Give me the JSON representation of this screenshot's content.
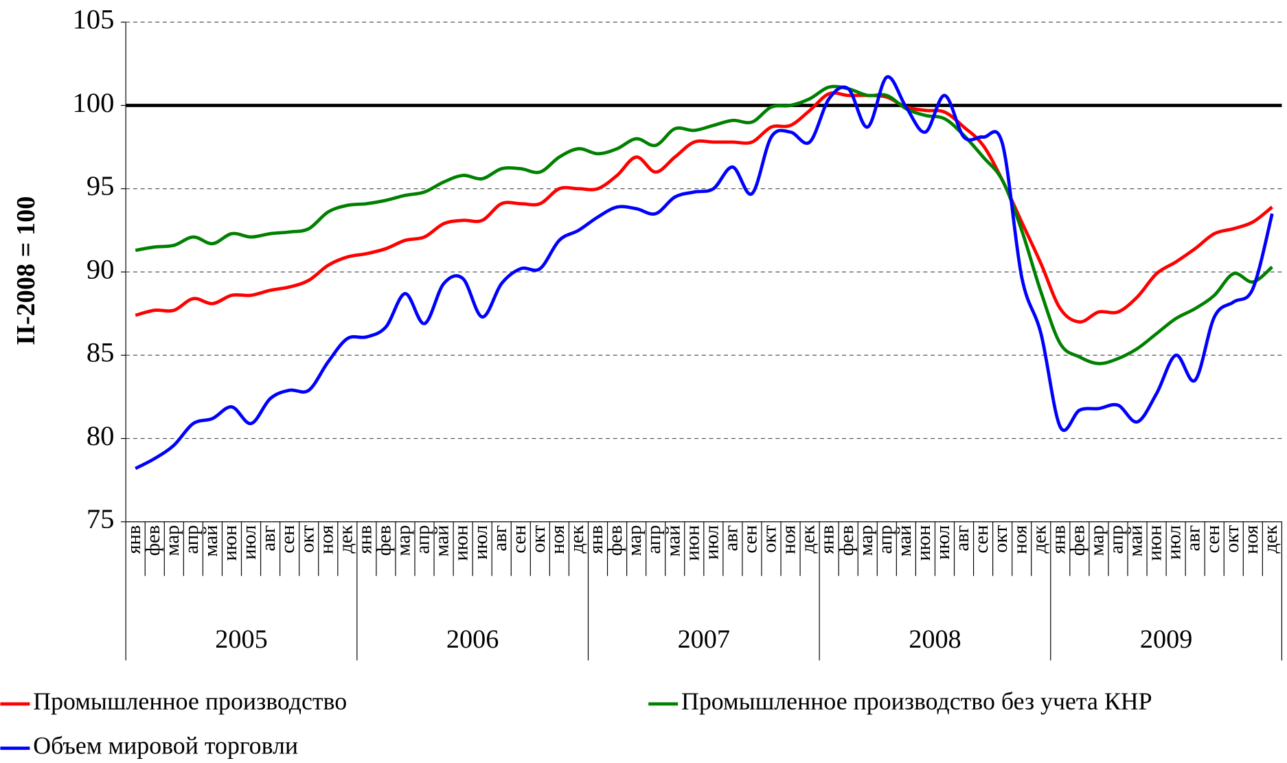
{
  "chart_data": {
    "type": "line",
    "y_label": "II-2008 = 100",
    "categories": [
      "янв",
      "фев",
      "мар",
      "апр",
      "май",
      "июн",
      "июл",
      "авг",
      "сен",
      "окт",
      "ноя",
      "дек",
      "янв",
      "фев",
      "мар",
      "апр",
      "май",
      "июн",
      "июл",
      "авг",
      "сен",
      "окт",
      "ноя",
      "дек",
      "янв",
      "фев",
      "мар",
      "апр",
      "май",
      "июн",
      "июл",
      "авг",
      "сен",
      "окт",
      "ноя",
      "дек",
      "янв",
      "фев",
      "мар",
      "апр",
      "май",
      "июн",
      "июл",
      "авг",
      "сен",
      "окт",
      "ноя",
      "дек",
      "янв",
      "фев",
      "мар",
      "апр",
      "май",
      "июн",
      "июл",
      "авг",
      "сен",
      "окт",
      "ноя",
      "дек"
    ],
    "groups": [
      "2005",
      "2006",
      "2007",
      "2008",
      "2009"
    ],
    "series": [
      {
        "name": "Промышленное производство",
        "color": "#ff0000",
        "values": [
          87.4,
          87.7,
          87.7,
          88.4,
          88.1,
          88.6,
          88.6,
          88.9,
          89.1,
          89.5,
          90.4,
          90.9,
          91.1,
          91.4,
          91.9,
          92.1,
          92.9,
          93.1,
          93.1,
          94.1,
          94.1,
          94.1,
          95.0,
          95.0,
          95.0,
          95.8,
          96.9,
          96.0,
          96.9,
          97.8,
          97.8,
          97.8,
          97.8,
          98.7,
          98.8,
          99.7,
          100.7,
          100.6,
          100.6,
          100.5,
          99.9,
          99.7,
          99.6,
          98.7,
          97.6,
          95.5,
          93.0,
          90.5,
          87.8,
          87.0,
          87.6,
          87.6,
          88.5,
          89.9,
          90.6,
          91.4,
          92.3,
          92.6,
          93.0,
          93.9
        ]
      },
      {
        "name": "Промышленное производство без учета КНР",
        "color": "#008000",
        "values": [
          91.3,
          91.5,
          91.6,
          92.1,
          91.7,
          92.3,
          92.1,
          92.3,
          92.4,
          92.6,
          93.6,
          94.0,
          94.1,
          94.3,
          94.6,
          94.8,
          95.4,
          95.8,
          95.6,
          96.2,
          96.2,
          96.0,
          96.9,
          97.4,
          97.1,
          97.4,
          98.0,
          97.6,
          98.6,
          98.5,
          98.8,
          99.1,
          99.0,
          99.9,
          100.0,
          100.4,
          101.1,
          101.0,
          100.6,
          100.6,
          99.8,
          99.4,
          99.2,
          98.2,
          96.9,
          95.5,
          92.5,
          88.8,
          85.7,
          84.9,
          84.5,
          84.8,
          85.4,
          86.3,
          87.2,
          87.8,
          88.6,
          89.9,
          89.4,
          90.3
        ]
      },
      {
        "name": "Объем мировой торговли",
        "color": "#0000ff",
        "values": [
          78.2,
          78.8,
          79.6,
          80.9,
          81.2,
          81.9,
          80.9,
          82.4,
          82.9,
          82.9,
          84.6,
          86.0,
          86.1,
          86.7,
          88.7,
          86.9,
          89.3,
          89.6,
          87.3,
          89.3,
          90.2,
          90.2,
          91.9,
          92.5,
          93.3,
          93.9,
          93.8,
          93.5,
          94.5,
          94.8,
          95.0,
          96.3,
          94.7,
          98.1,
          98.4,
          97.8,
          100.4,
          101.0,
          98.7,
          101.7,
          99.9,
          98.4,
          100.6,
          98.1,
          98.1,
          97.7,
          89.7,
          86.3,
          80.7,
          81.7,
          81.8,
          82.0,
          81.0,
          82.7,
          85.0,
          83.5,
          87.3,
          88.2,
          89.0,
          93.5
        ]
      }
    ],
    "reference_line": 100,
    "ylim": [
      75,
      105
    ],
    "yticks": [
      75,
      80,
      85,
      90,
      95,
      100,
      105
    ],
    "grid": true
  }
}
